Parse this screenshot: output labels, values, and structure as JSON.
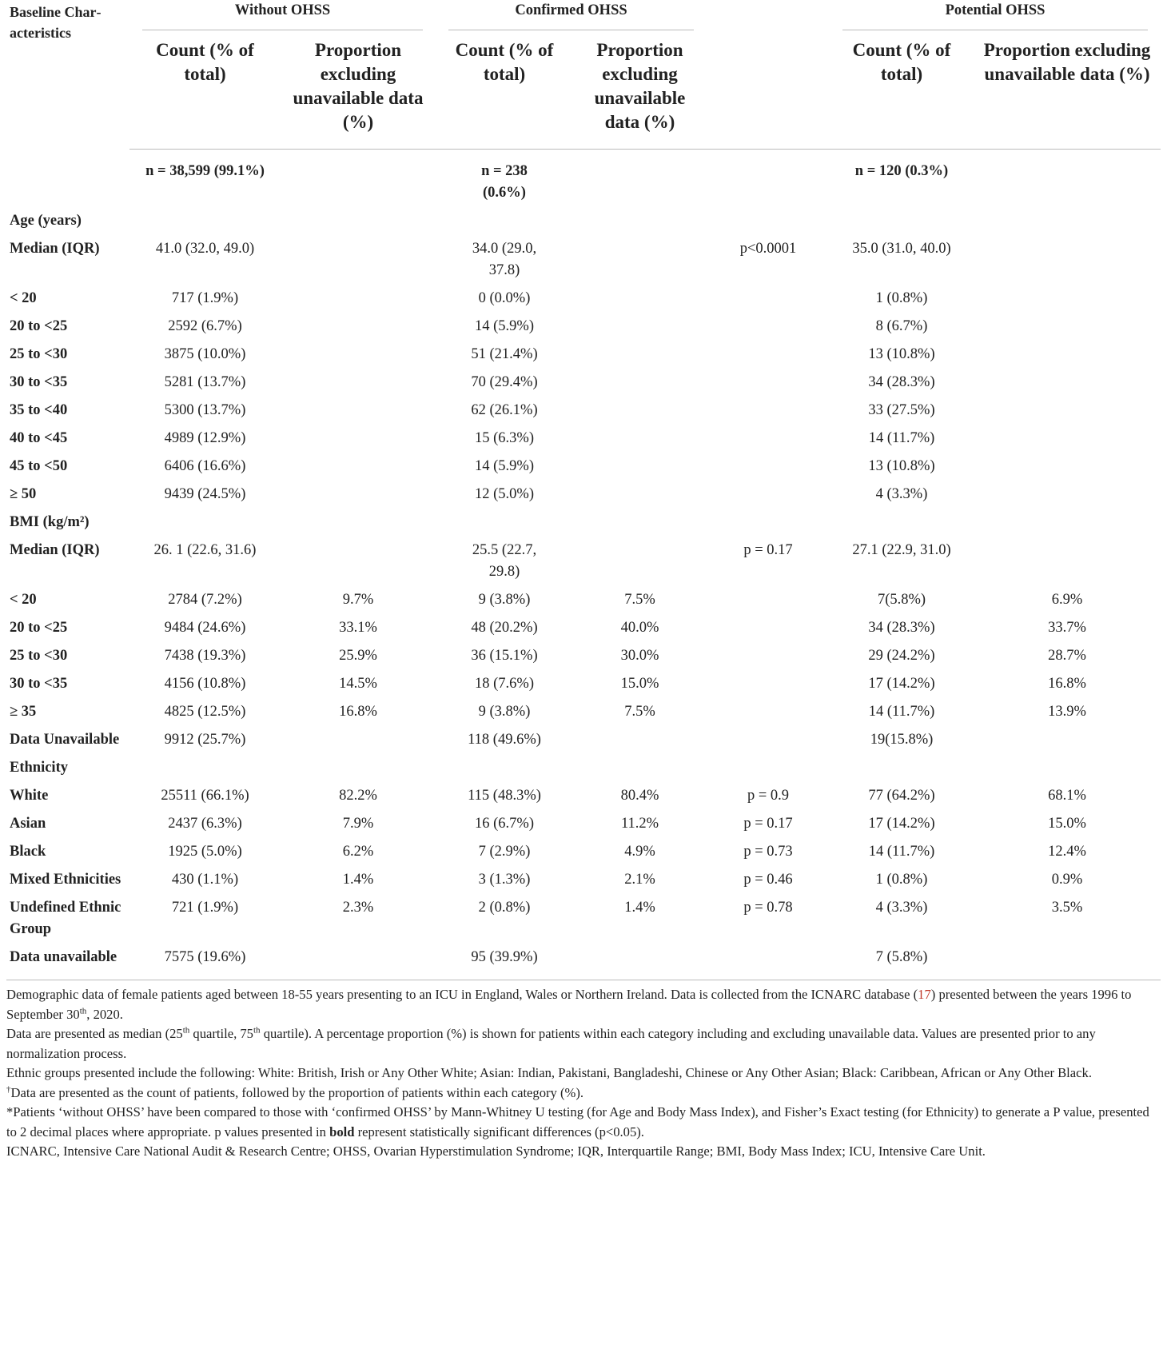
{
  "header": {
    "corner": "Baseline Char­acteristics",
    "groups": [
      "Without OHSS",
      "Confirmed OHSS",
      "Potential OHSS"
    ],
    "subheaders": [
      "Count (% of total)",
      "Proportion excluding unavailable data (%)",
      "Count (% of total)",
      "Proportion excluding unavailable data (%)",
      "Count (% of total)",
      "Proportion excluding unavailable data (%)"
    ]
  },
  "table": {
    "rows": [
      [
        null,
        "n = 38,599 (99.1%)",
        null,
        "n = 238 (0.6%)",
        null,
        null,
        "n = 120 (0.3%)",
        null
      ],
      [
        "Age (years)",
        null,
        null,
        null,
        null,
        null,
        null,
        null
      ],
      [
        "Median (IQR)",
        "41.0 (32.0, 49.0)",
        null,
        "34.0 (29.0, 37.8)",
        null,
        "p<0.0001",
        "35.0 (31.0, 40.0)",
        null
      ],
      [
        "< 20",
        "717 (1.9%)",
        null,
        "0 (0.0%)",
        null,
        null,
        "1 (0.8%)",
        null
      ],
      [
        "20 to <25",
        "2592 (6.7%)",
        null,
        "14 (5.9%)",
        null,
        null,
        "8 (6.7%)",
        null
      ],
      [
        "25 to <30",
        "3875 (10.0%)",
        null,
        "51 (21.4%)",
        null,
        null,
        "13 (10.8%)",
        null
      ],
      [
        "30 to <35",
        "5281 (13.7%)",
        null,
        "70 (29.4%)",
        null,
        null,
        "34 (28.3%)",
        null
      ],
      [
        "35 to <40",
        "5300 (13.7%)",
        null,
        "62 (26.1%)",
        null,
        null,
        "33 (27.5%)",
        null
      ],
      [
        "40 to <45",
        "4989 (12.9%)",
        null,
        "15 (6.3%)",
        null,
        null,
        "14 (11.7%)",
        null
      ],
      [
        "45 to <50",
        "6406 (16.6%)",
        null,
        "14 (5.9%)",
        null,
        null,
        "13 (10.8%)",
        null
      ],
      [
        "≥ 50",
        "9439 (24.5%)",
        null,
        "12 (5.0%)",
        null,
        null,
        "4 (3.3%)",
        null
      ],
      [
        "BMI (kg/m²)",
        null,
        null,
        null,
        null,
        null,
        null,
        null
      ],
      [
        "Median (IQR)",
        "26. 1 (22.6, 31.6)",
        null,
        "25.5 (22.7, 29.8)",
        null,
        "p = 0.17",
        "27.1 (22.9, 31.0)",
        null
      ],
      [
        "< 20",
        "2784 (7.2%)",
        "9.7%",
        "9 (3.8%)",
        "7.5%",
        null,
        "7(5.8%)",
        "6.9%"
      ],
      [
        "20 to <25",
        "9484 (24.6%)",
        "33.1%",
        "48 (20.2%)",
        "40.0%",
        null,
        "34 (28.3%)",
        "33.7%"
      ],
      [
        "25 to <30",
        "7438 (19.3%)",
        "25.9%",
        "36 (15.1%)",
        "30.0%",
        null,
        "29 (24.2%)",
        "28.7%"
      ],
      [
        "30 to <35",
        "4156 (10.8%)",
        "14.5%",
        "18 (7.6%)",
        "15.0%",
        null,
        "17 (14.2%)",
        "16.8%"
      ],
      [
        "≥ 35",
        "4825 (12.5%)",
        "16.8%",
        "9 (3.8%)",
        "7.5%",
        null,
        "14 (11.7%)",
        "13.9%"
      ],
      [
        "Data Unavailable",
        "9912 (25.7%)",
        null,
        "118 (49.6%)",
        null,
        null,
        "19(15.8%)",
        null
      ],
      [
        "Ethnicity",
        null,
        null,
        null,
        null,
        null,
        null,
        null
      ],
      [
        "White",
        "25511 (66.1%)",
        "82.2%",
        "115 (48.3%)",
        "80.4%",
        "p = 0.9",
        "77 (64.2%)",
        "68.1%"
      ],
      [
        "Asian",
        "2437 (6.3%)",
        "7.9%",
        "16 (6.7%)",
        "11.2%",
        "p = 0.17",
        "17 (14.2%)",
        "15.0%"
      ],
      [
        "Black",
        "1925 (5.0%)",
        "6.2%",
        "7 (2.9%)",
        "4.9%",
        "p = 0.73",
        "14 (11.7%)",
        "12.4%"
      ],
      [
        "Mixed Ethnicities",
        "430 (1.1%)",
        "1.4%",
        "3 (1.3%)",
        "2.1%",
        "p = 0.46",
        "1 (0.8%)",
        "0.9%"
      ],
      [
        "Undefined Ethnic Group",
        "721 (1.9%)",
        "2.3%",
        "2 (0.8%)",
        "1.4%",
        "p = 0.78",
        "4 (3.3%)",
        "3.5%"
      ],
      [
        "Data unavailable",
        "7575 (19.6%)",
        null,
        "95 (39.9%)",
        null,
        null,
        "7 (5.8%)",
        null
      ]
    ]
  },
  "notes": [
    [
      "Demographic data of female patients aged between 18-55 years presenting to an ICU in England, Wales or Northern Ireland. Data is collected from the ICNARC database (",
      "17",
      ") presented between the years 1996 to September 30",
      "th",
      ", 2020."
    ],
    [
      "Data are presented as median (25",
      "th",
      " quartile, 75",
      "th",
      " quartile). A percentage proportion (%) is shown for patients within each category including and excluding unavailable data. Values are presented prior to any normalization process."
    ],
    [
      "Ethnic groups presented include the following: White: British, Irish or Any Other White; Asian: Indian, Pakistani, Bangladeshi, Chinese or Any Other Asian; Black: Caribbean, African or Any Other Black."
    ],
    [
      "†",
      "Data are presented as the count of patients, followed by the proportion of patients within each category (%)."
    ],
    [
      "*Patients ‘without OHSS’ have been compared to those with ‘confirmed OHSS’ by Mann-Whitney U testing (for Age and Body Mass Index), and Fisher’s Exact testing (for Ethnicity) to generate a P value, presented to 2 decimal places where appropriate. p values presented in ",
      "bold",
      " represent statistically significant differences (p<0.05)."
    ],
    [
      "ICNARC, Intensive Care National Audit & Research Centre; OHSS, Ovarian Hyperstimulation Syndrome; IQR, Interquartile Range; BMI, Body Mass Index; ICU, Intensive Care Unit."
    ]
  ]
}
